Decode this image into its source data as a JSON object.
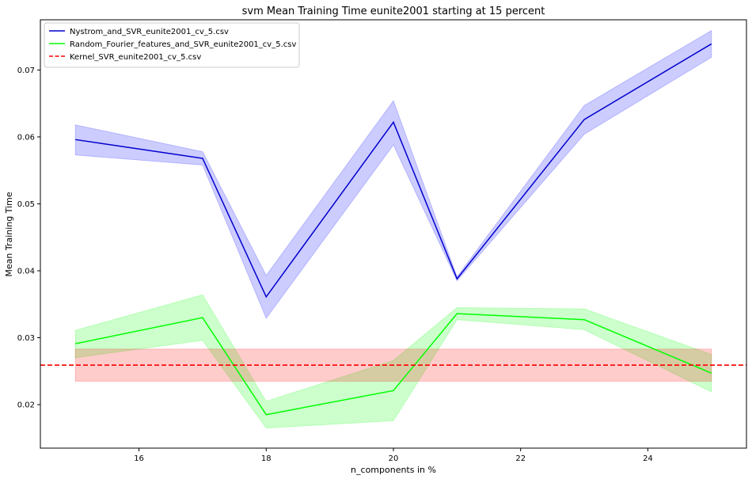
{
  "chart_data": {
    "type": "line",
    "title": "svm Mean Training Time eunite2001 starting at 15 percent",
    "xlabel": "n_components in %",
    "ylabel": "Mean Training Time",
    "xlim": [
      14.45,
      25.55
    ],
    "ylim": [
      0.0135,
      0.0775
    ],
    "xticks": [
      16,
      18,
      20,
      22,
      24
    ],
    "yticks": [
      0.02,
      0.03,
      0.04,
      0.05,
      0.06,
      0.07
    ],
    "grid": false,
    "legend_position": "top-left",
    "x": [
      15,
      17,
      18,
      20,
      21,
      23,
      25
    ],
    "series": [
      {
        "name": "Nystrom_and_SVR_eunite2001_cv_5.csv",
        "color": "#0000cd",
        "band_color": "#0000ff",
        "values": [
          0.0596,
          0.0568,
          0.0361,
          0.0622,
          0.0388,
          0.0626,
          0.0739
        ],
        "lower": [
          0.0573,
          0.0558,
          0.0329,
          0.0588,
          0.0385,
          0.0604,
          0.0719
        ],
        "upper": [
          0.0618,
          0.0578,
          0.0393,
          0.0654,
          0.0391,
          0.0647,
          0.0759
        ],
        "style": "solid"
      },
      {
        "name": "Random_Fourier_features_and_SVR_eunite2001_cv_5.csv",
        "color": "#00ff00",
        "band_color": "#00ff00",
        "values": [
          0.0291,
          0.033,
          0.0185,
          0.0221,
          0.0336,
          0.0327,
          0.0247
        ],
        "lower": [
          0.027,
          0.0296,
          0.0165,
          0.0176,
          0.0327,
          0.0312,
          0.0219
        ],
        "upper": [
          0.0311,
          0.0364,
          0.0205,
          0.0266,
          0.0345,
          0.0343,
          0.0275
        ],
        "style": "solid"
      },
      {
        "name": "Kernel_SVR_eunite2001_cv_5.csv",
        "color": "#ff0000",
        "band_color": "#ff0000",
        "constant": 0.0259,
        "lower_const": 0.0235,
        "upper_const": 0.0283,
        "style": "dashed"
      }
    ]
  }
}
